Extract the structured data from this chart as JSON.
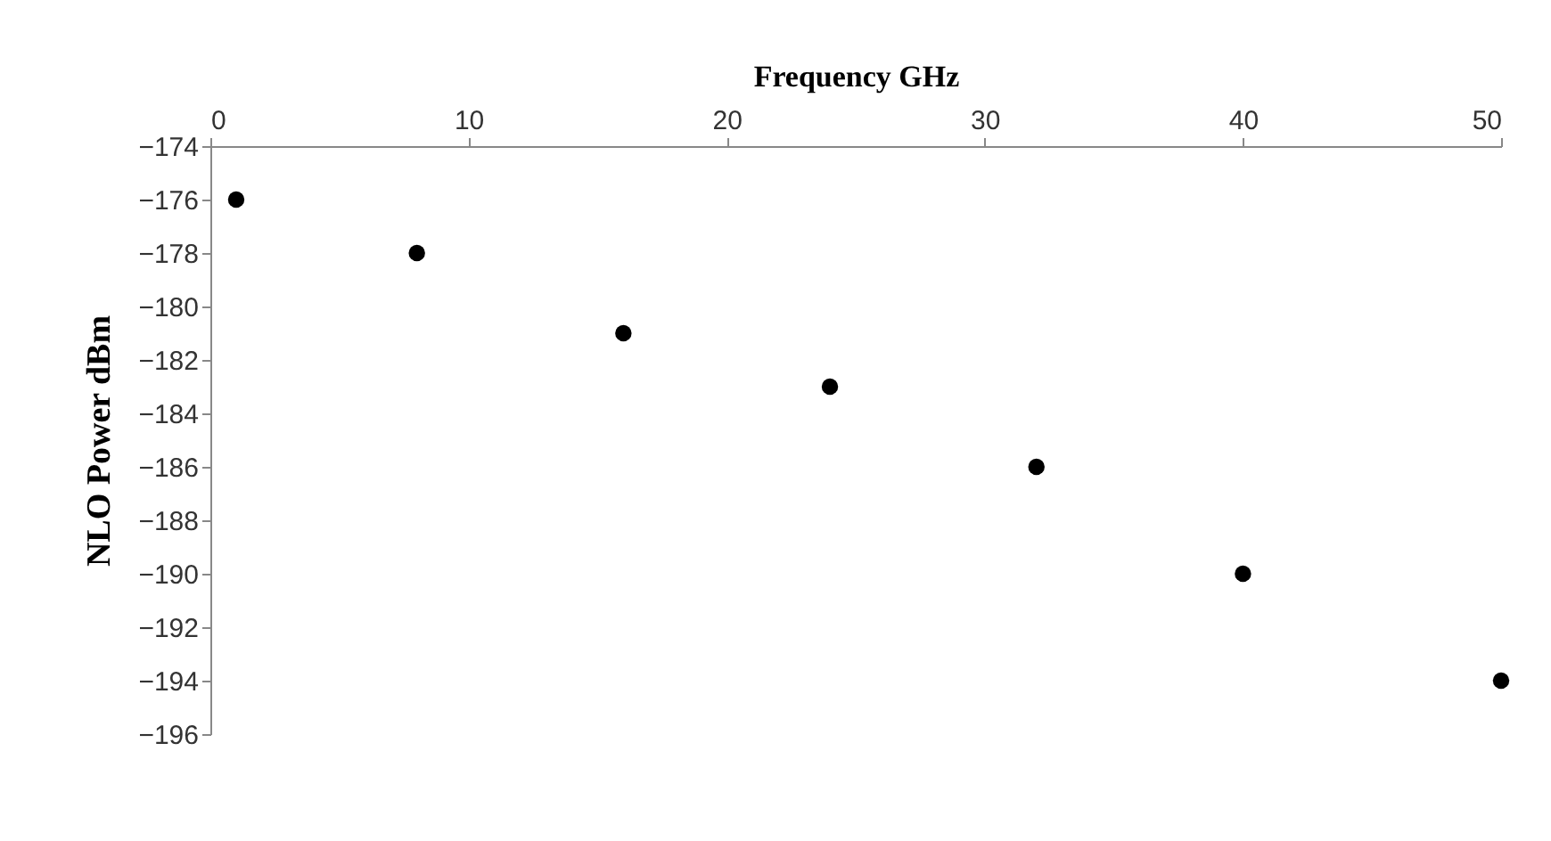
{
  "chart_data": {
    "type": "scatter",
    "xlabel": "Frequency GHz",
    "ylabel": "NLO Power dBm",
    "x": [
      1,
      8,
      16,
      24,
      32,
      40,
      50
    ],
    "series": [
      {
        "color": "#000000",
        "values": [
          -176,
          -178,
          -181,
          -183,
          -186,
          -190,
          -194
        ]
      }
    ],
    "xlim": [
      0,
      50
    ],
    "xticks": [
      0,
      10,
      20,
      30,
      40,
      50
    ],
    "ylim": [
      -196,
      -174
    ],
    "yticks": [
      -196,
      -194,
      -192,
      -190,
      -188,
      -186,
      -184,
      -182,
      -180,
      -178,
      -176,
      -174
    ],
    "grid": false,
    "marker": "circle"
  }
}
